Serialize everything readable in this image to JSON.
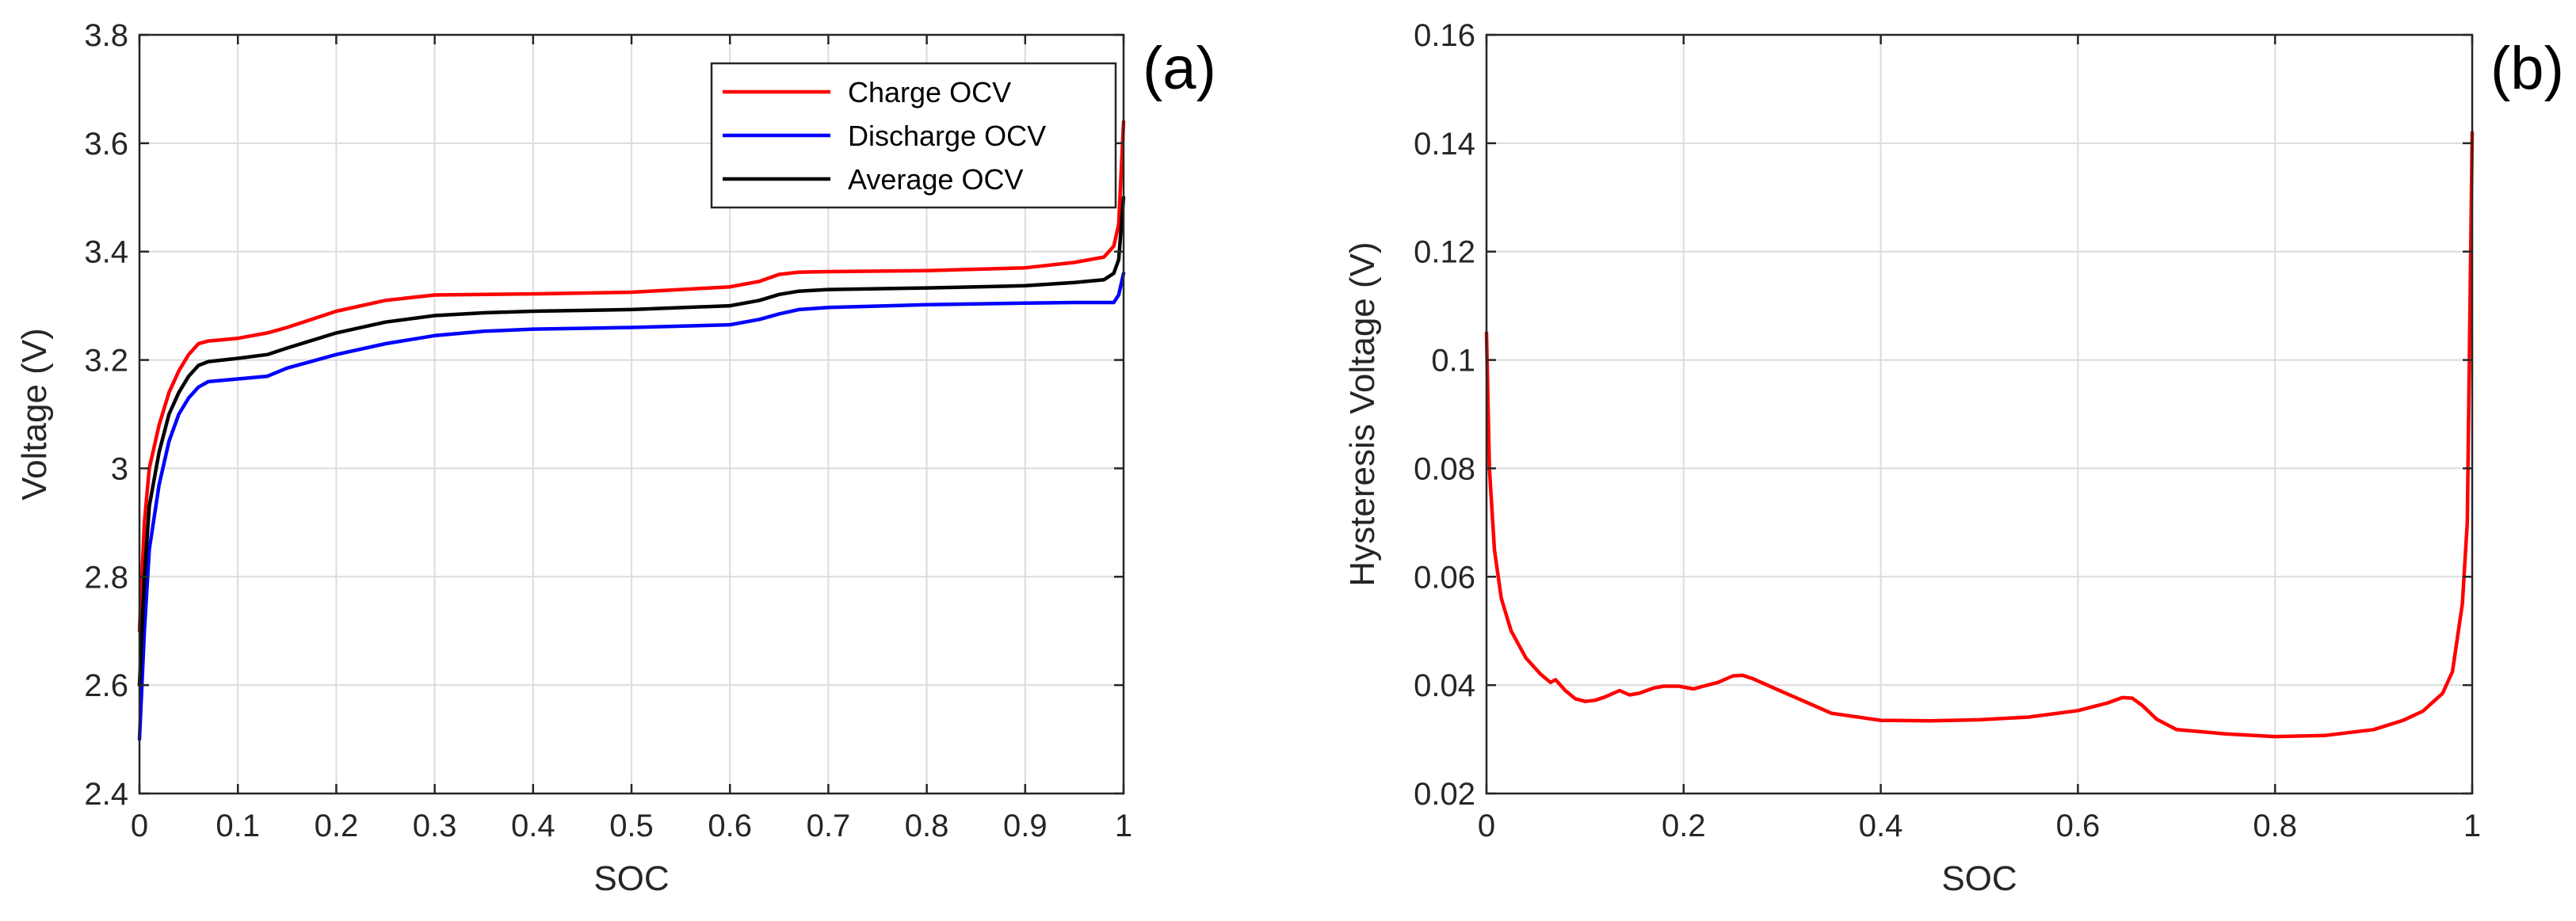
{
  "chart_data": [
    {
      "type": "line",
      "panel_label": "(a)",
      "title": "",
      "xlabel": "SOC",
      "ylabel": "Voltage (V)",
      "xlim": [
        0,
        1
      ],
      "ylim": [
        2.4,
        3.8
      ],
      "xticks": [
        0,
        0.1,
        0.2,
        0.3,
        0.4,
        0.5,
        0.6,
        0.7,
        0.8,
        0.9,
        1
      ],
      "xtick_labels": [
        "0",
        "0.1",
        "0.2",
        "0.3",
        "0.4",
        "0.5",
        "0.6",
        "0.7",
        "0.8",
        "0.9",
        "1"
      ],
      "yticks": [
        2.4,
        2.6,
        2.8,
        3.0,
        3.2,
        3.4,
        3.6,
        3.8
      ],
      "ytick_labels": [
        "2.4",
        "2.6",
        "2.8",
        "3",
        "3.2",
        "3.4",
        "3.6",
        "3.8"
      ],
      "grid": true,
      "legend_position": "top-right",
      "series": [
        {
          "name": "Charge OCV",
          "color": "#ff0000",
          "x": [
            0,
            0.005,
            0.01,
            0.02,
            0.03,
            0.04,
            0.05,
            0.06,
            0.07,
            0.1,
            0.13,
            0.15,
            0.2,
            0.25,
            0.3,
            0.4,
            0.5,
            0.55,
            0.6,
            0.63,
            0.65,
            0.67,
            0.7,
            0.8,
            0.9,
            0.95,
            0.98,
            0.99,
            0.995,
            1
          ],
          "y": [
            2.7,
            2.9,
            3.0,
            3.08,
            3.14,
            3.18,
            3.21,
            3.23,
            3.235,
            3.24,
            3.25,
            3.26,
            3.29,
            3.31,
            3.32,
            3.322,
            3.325,
            3.33,
            3.335,
            3.345,
            3.358,
            3.362,
            3.363,
            3.365,
            3.37,
            3.38,
            3.39,
            3.41,
            3.45,
            3.64
          ]
        },
        {
          "name": "Discharge OCV",
          "color": "#0000ff",
          "x": [
            0,
            0.005,
            0.01,
            0.02,
            0.03,
            0.04,
            0.05,
            0.06,
            0.07,
            0.1,
            0.13,
            0.15,
            0.2,
            0.25,
            0.3,
            0.35,
            0.4,
            0.5,
            0.6,
            0.63,
            0.65,
            0.67,
            0.7,
            0.8,
            0.9,
            0.95,
            0.99,
            0.995,
            1
          ],
          "y": [
            2.5,
            2.7,
            2.85,
            2.97,
            3.05,
            3.1,
            3.13,
            3.15,
            3.16,
            3.165,
            3.17,
            3.185,
            3.21,
            3.23,
            3.245,
            3.253,
            3.257,
            3.26,
            3.265,
            3.275,
            3.285,
            3.293,
            3.297,
            3.302,
            3.305,
            3.306,
            3.306,
            3.32,
            3.36
          ]
        },
        {
          "name": "Average OCV",
          "color": "#000000",
          "x": [
            0,
            0.005,
            0.01,
            0.02,
            0.03,
            0.04,
            0.05,
            0.06,
            0.07,
            0.1,
            0.13,
            0.15,
            0.2,
            0.25,
            0.3,
            0.35,
            0.4,
            0.5,
            0.6,
            0.63,
            0.65,
            0.67,
            0.7,
            0.8,
            0.9,
            0.95,
            0.98,
            0.99,
            0.995,
            1
          ],
          "y": [
            2.6,
            2.8,
            2.93,
            3.03,
            3.1,
            3.14,
            3.17,
            3.19,
            3.197,
            3.203,
            3.21,
            3.222,
            3.25,
            3.27,
            3.282,
            3.287,
            3.29,
            3.293,
            3.3,
            3.31,
            3.321,
            3.327,
            3.33,
            3.333,
            3.337,
            3.343,
            3.348,
            3.36,
            3.385,
            3.5
          ]
        }
      ]
    },
    {
      "type": "line",
      "panel_label": "(b)",
      "title": "",
      "xlabel": "SOC",
      "ylabel": "Hysteresis Voltage (V)",
      "xlim": [
        0,
        1
      ],
      "ylim": [
        0.02,
        0.16
      ],
      "xticks": [
        0,
        0.2,
        0.4,
        0.6,
        0.8,
        1
      ],
      "xtick_labels": [
        "0",
        "0.2",
        "0.4",
        "0.6",
        "0.8",
        "1"
      ],
      "yticks": [
        0.02,
        0.04,
        0.06,
        0.08,
        0.1,
        0.12,
        0.14,
        0.16
      ],
      "ytick_labels": [
        "0.02",
        "0.04",
        "0.06",
        "0.08",
        "0.1",
        "0.12",
        "0.14",
        "0.16"
      ],
      "grid": true,
      "series": [
        {
          "name": "Hysteresis Voltage",
          "color": "#ff0000",
          "x": [
            0,
            0.003,
            0.008,
            0.015,
            0.025,
            0.04,
            0.055,
            0.065,
            0.07,
            0.08,
            0.09,
            0.1,
            0.11,
            0.12,
            0.135,
            0.145,
            0.155,
            0.17,
            0.18,
            0.195,
            0.21,
            0.22,
            0.235,
            0.25,
            0.26,
            0.27,
            0.3,
            0.35,
            0.4,
            0.45,
            0.5,
            0.55,
            0.6,
            0.63,
            0.645,
            0.655,
            0.665,
            0.68,
            0.7,
            0.75,
            0.8,
            0.85,
            0.9,
            0.93,
            0.95,
            0.97,
            0.98,
            0.99,
            0.995,
            1
          ],
          "y": [
            0.105,
            0.08,
            0.065,
            0.056,
            0.05,
            0.045,
            0.042,
            0.0405,
            0.041,
            0.039,
            0.0375,
            0.037,
            0.0372,
            0.0378,
            0.039,
            0.0382,
            0.0385,
            0.0395,
            0.0398,
            0.0398,
            0.0393,
            0.0398,
            0.0405,
            0.0417,
            0.0418,
            0.0412,
            0.0388,
            0.0348,
            0.0335,
            0.0334,
            0.0336,
            0.0341,
            0.0353,
            0.0367,
            0.0377,
            0.0376,
            0.0363,
            0.0337,
            0.0318,
            0.031,
            0.0305,
            0.0307,
            0.0318,
            0.0335,
            0.0352,
            0.0385,
            0.0425,
            0.055,
            0.07,
            0.142
          ]
        }
      ]
    }
  ]
}
